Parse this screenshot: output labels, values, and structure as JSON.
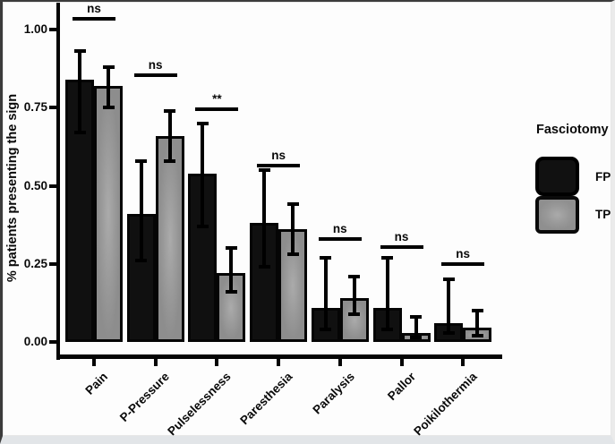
{
  "figure": {
    "legend": {
      "title": "Fasciotomy",
      "items": [
        {
          "label": "FP",
          "color": "#101010"
        },
        {
          "label": "TP",
          "color": "#9a9a9a"
        }
      ]
    }
  },
  "chart_data": {
    "type": "bar",
    "title": "",
    "xlabel": "",
    "ylabel": "% patients presenting the sign",
    "ylim": [
      0,
      1.08
    ],
    "grid": false,
    "legend_position": "right",
    "yticks": [
      {
        "label": "1.00",
        "value": 1.0
      },
      {
        "label": "0.75",
        "value": 0.75
      },
      {
        "label": "0.50",
        "value": 0.5
      },
      {
        "label": "0.25",
        "value": 0.25
      },
      {
        "label": "0.00",
        "value": 0.0
      }
    ],
    "categories": [
      "Pain",
      "P-Pressure",
      "Pulselessness",
      "Paresthesia",
      "Paralysis",
      "Pallor",
      "Poikilothermia"
    ],
    "series": [
      {
        "name": "FP",
        "color": "#101010",
        "values": [
          0.84,
          0.41,
          0.54,
          0.38,
          0.11,
          0.11,
          0.06
        ],
        "error_low": [
          0.67,
          0.26,
          0.37,
          0.24,
          0.04,
          0.04,
          0.03
        ],
        "error_high": [
          0.93,
          0.58,
          0.7,
          0.55,
          0.27,
          0.27,
          0.2
        ]
      },
      {
        "name": "TP",
        "color": "#9a9a9a",
        "values": [
          0.82,
          0.66,
          0.22,
          0.36,
          0.14,
          0.03,
          0.045
        ],
        "error_low": [
          0.75,
          0.58,
          0.16,
          0.28,
          0.09,
          0.015,
          0.02
        ],
        "error_high": [
          0.88,
          0.74,
          0.3,
          0.44,
          0.21,
          0.08,
          0.1
        ]
      }
    ],
    "significance": [
      {
        "category": "Pain",
        "label": "ns",
        "y": 1.04
      },
      {
        "category": "P-Pressure",
        "label": "ns",
        "y": 0.86
      },
      {
        "category": "Pulselessness",
        "label": "**",
        "y": 0.75
      },
      {
        "category": "Paresthesia",
        "label": "ns",
        "y": 0.57
      },
      {
        "category": "Paralysis",
        "label": "ns",
        "y": 0.335
      },
      {
        "category": "Pallor",
        "label": "ns",
        "y": 0.31
      },
      {
        "category": "Poikilothermia",
        "label": "ns",
        "y": 0.255
      }
    ]
  }
}
